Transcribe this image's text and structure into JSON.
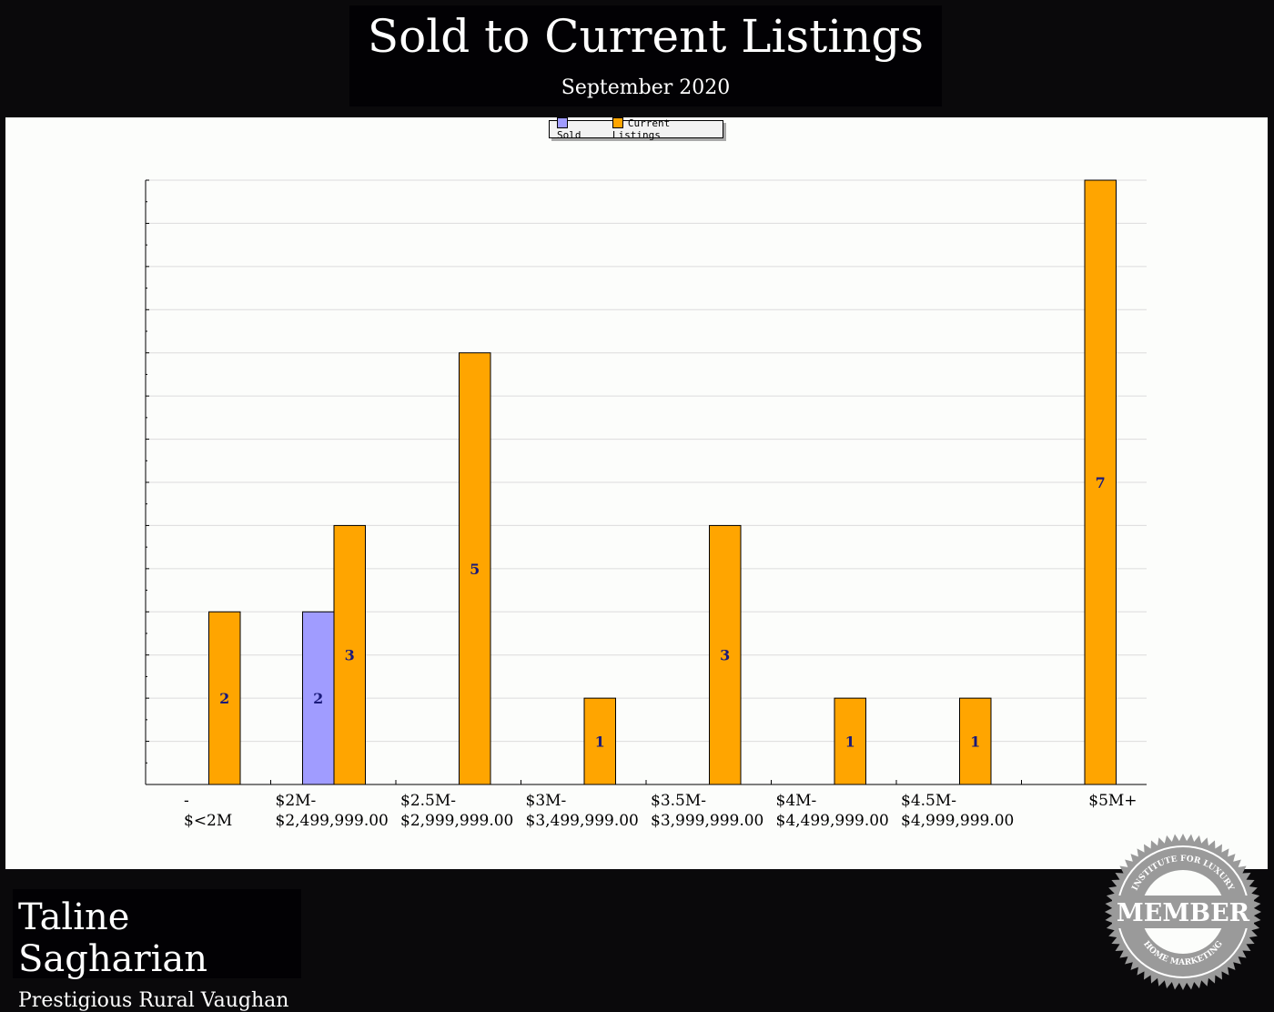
{
  "header": {
    "title": "Sold to Current Listings",
    "subtitle": "September 2020"
  },
  "chart_data": {
    "type": "bar",
    "categories": [
      [
        "-",
        "$<2M"
      ],
      [
        "$2M-",
        "$2,499,999.00"
      ],
      [
        "$2.5M-",
        "$2,999,999.00"
      ],
      [
        "$3M-",
        "$3,499,999.00"
      ],
      [
        "$3.5M-",
        "$3,999,999.00"
      ],
      [
        "$4M-",
        "$4,499,999.00"
      ],
      [
        "$4.5M-",
        "$4,999,999.00"
      ],
      [
        "$5M+",
        ""
      ]
    ],
    "series": [
      {
        "name": "Sold",
        "color": "#a09cff",
        "values": [
          0,
          2,
          0,
          0,
          0,
          0,
          0,
          0
        ]
      },
      {
        "name": "Current Listings",
        "color": "#ffa500",
        "values": [
          2,
          3,
          5,
          1,
          3,
          1,
          1,
          7
        ]
      }
    ],
    "ylim": [
      0,
      7
    ],
    "grid": true,
    "legend": "top-center",
    "label_color": "#1a1a7a"
  },
  "footer": {
    "agent_name": "Taline Sagharian",
    "office": "Prestigious Rural Vaughan",
    "badge": {
      "top": "INSTITUTE FOR LUXURY",
      "main": "MEMBER",
      "bottom": "HOME MARKETING"
    }
  }
}
